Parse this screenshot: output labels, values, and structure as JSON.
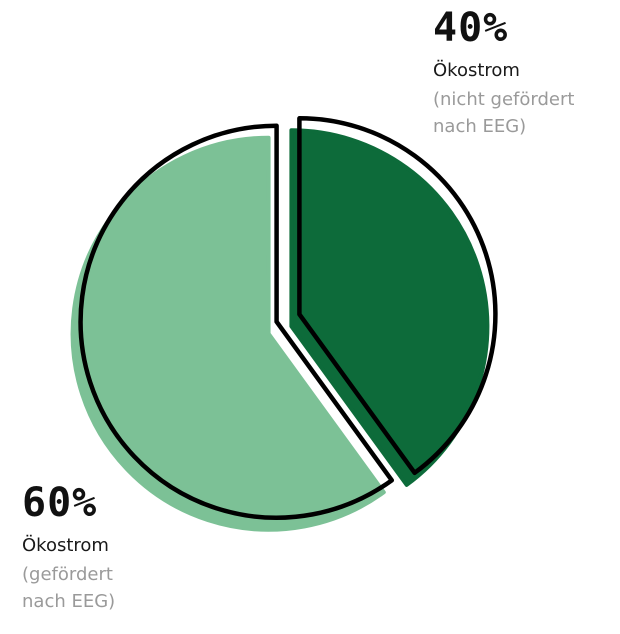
{
  "chart_data": {
    "type": "pie",
    "slices": [
      {
        "value": 60,
        "label": "60%",
        "name": "Ökostrom",
        "sub_line1": "(gefördert",
        "sub_line2": "nach EEG)",
        "color": "#7cc196",
        "shadow_color": "#7cc196"
      },
      {
        "value": 40,
        "label": "40%",
        "name": "Ökostrom",
        "sub_line1": "(nicht gefördert",
        "sub_line2": "nach EEG)",
        "color": "#0d6b3a",
        "shadow_color": "#0d6b3a"
      }
    ],
    "outline_color": "#000000"
  }
}
